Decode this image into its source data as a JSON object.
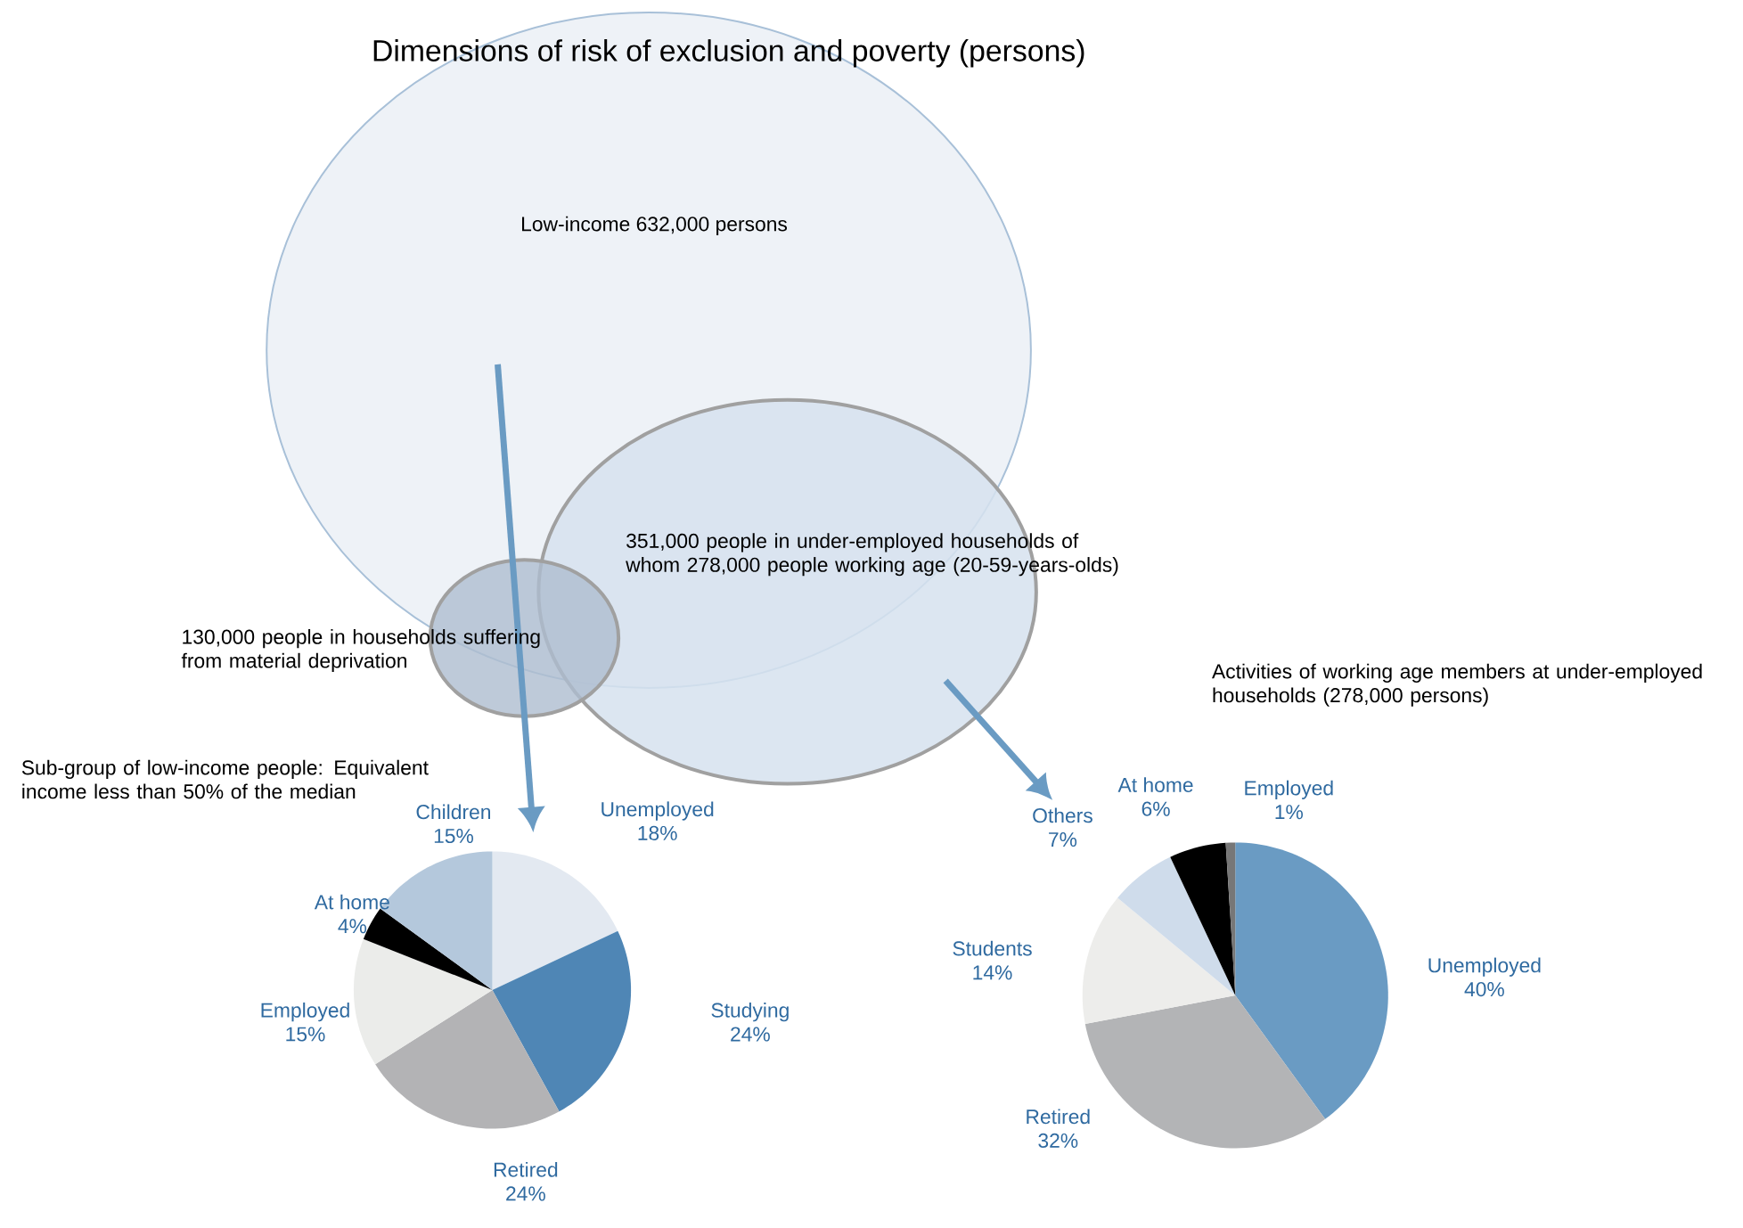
{
  "chart_data": [
    {
      "type": "other",
      "title": "Dimensions of risk of exclusion and poverty (persons)",
      "annotations": [
        "Low-income 632,000 persons",
        "351,000 people in under-employed households of whom 278,000 people working age (20-59-years-olds)",
        "130,000 people in households suffering from material deprivation"
      ]
    },
    {
      "type": "pie",
      "title": "Sub-group of low-income people: Equivalent income less than 50% of the median",
      "categories": [
        "Unemployed",
        "Studying",
        "Retired",
        "Employed",
        "At home",
        "Children"
      ],
      "values": [
        18,
        24,
        24,
        15,
        4,
        15
      ],
      "value_labels": [
        "18%",
        "24%",
        "24%",
        "15%",
        "4%",
        "15%"
      ],
      "colors": [
        "#e3e9f1",
        "#4f86b5",
        "#b3b3b5",
        "#ebecea",
        "#000000",
        "#b4c8dc"
      ]
    },
    {
      "type": "pie",
      "title": "Activities of working age members at under-employed households (278,000 persons)",
      "categories": [
        "Unemployed",
        "Retired",
        "Students",
        "Others",
        "At home",
        "Employed"
      ],
      "values": [
        40,
        32,
        14,
        7,
        6,
        1
      ],
      "value_labels": [
        "40%",
        "32%",
        "14%",
        "7%",
        "6%",
        "1%"
      ],
      "colors": [
        "#6a9bc3",
        "#b3b4b6",
        "#ededeb",
        "#cfdceb",
        "#000000",
        "#777777"
      ]
    }
  ]
}
